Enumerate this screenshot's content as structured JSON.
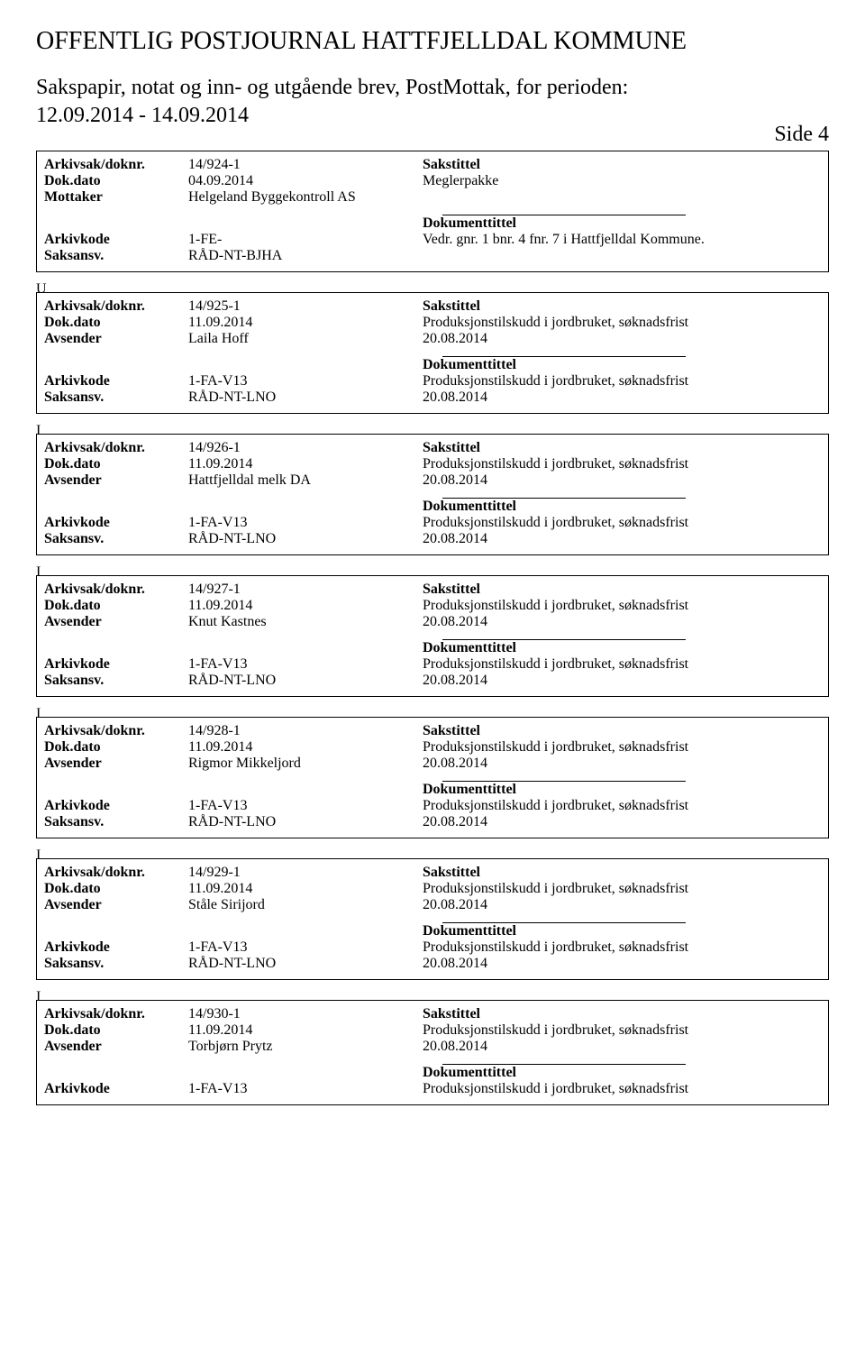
{
  "header": {
    "title": "OFFENTLIG POSTJOURNAL HATTFJELLDAL KOMMUNE",
    "subtitle_line1": "Sakspapir, notat og inn- og utgående brev, PostMottak, for perioden:",
    "subtitle_line2": "12.09.2014 - 14.09.2014",
    "side_label": "Side 4"
  },
  "labels": {
    "arkivsak": "Arkivsak/doknr.",
    "dokdato": "Dok.dato",
    "mottaker": "Mottaker",
    "avsender": "Avsender",
    "arkivkode": "Arkivkode",
    "saksansv": "Saksansv.",
    "sakstittel": "Sakstittel",
    "dokumenttittel": "Dokumenttittel"
  },
  "entries": [
    {
      "id": "14/924-1",
      "date": "04.09.2014",
      "party_label": "Mottaker",
      "party_value": "Helgeland Byggekontroll AS",
      "arkivkode": "1-FE-",
      "saksansv": "RÅD-NT-BJHA",
      "sakstittel": "Meglerpakke",
      "sakstittel2": "",
      "dok1": "Vedr. gnr. 1 bnr. 4 fnr. 7 i Hattfjelldal Kommune.",
      "dok2": "",
      "type_after": "U"
    },
    {
      "id": "14/925-1",
      "date": "11.09.2014",
      "party_label": "Avsender",
      "party_value": "Laila Hoff",
      "arkivkode": "1-FA-V13",
      "saksansv": "RÅD-NT-LNO",
      "sakstittel": "Produksjonstilskudd i jordbruket, søknadsfrist",
      "sakstittel2": "20.08.2014",
      "dok1": "Produksjonstilskudd i jordbruket, søknadsfrist",
      "dok2": "20.08.2014",
      "type_after": "I"
    },
    {
      "id": "14/926-1",
      "date": "11.09.2014",
      "party_label": "Avsender",
      "party_value": "Hattfjelldal melk DA",
      "arkivkode": "1-FA-V13",
      "saksansv": "RÅD-NT-LNO",
      "sakstittel": "Produksjonstilskudd i jordbruket, søknadsfrist",
      "sakstittel2": "20.08.2014",
      "dok1": "Produksjonstilskudd i jordbruket, søknadsfrist",
      "dok2": "20.08.2014",
      "type_after": "I"
    },
    {
      "id": "14/927-1",
      "date": "11.09.2014",
      "party_label": "Avsender",
      "party_value": "Knut Kastnes",
      "arkivkode": "1-FA-V13",
      "saksansv": "RÅD-NT-LNO",
      "sakstittel": "Produksjonstilskudd i jordbruket, søknadsfrist",
      "sakstittel2": "20.08.2014",
      "dok1": "Produksjonstilskudd i jordbruket, søknadsfrist",
      "dok2": "20.08.2014",
      "type_after": "I"
    },
    {
      "id": "14/928-1",
      "date": "11.09.2014",
      "party_label": "Avsender",
      "party_value": "Rigmor Mikkeljord",
      "arkivkode": "1-FA-V13",
      "saksansv": "RÅD-NT-LNO",
      "sakstittel": "Produksjonstilskudd i jordbruket, søknadsfrist",
      "sakstittel2": "20.08.2014",
      "dok1": "Produksjonstilskudd i jordbruket, søknadsfrist",
      "dok2": "20.08.2014",
      "type_after": "I"
    },
    {
      "id": "14/929-1",
      "date": "11.09.2014",
      "party_label": "Avsender",
      "party_value": "Ståle Sirijord",
      "arkivkode": "1-FA-V13",
      "saksansv": "RÅD-NT-LNO",
      "sakstittel": "Produksjonstilskudd i jordbruket, søknadsfrist",
      "sakstittel2": "20.08.2014",
      "dok1": "Produksjonstilskudd i jordbruket, søknadsfrist",
      "dok2": "20.08.2014",
      "type_after": "I"
    },
    {
      "id": "14/930-1",
      "date": "11.09.2014",
      "party_label": "Avsender",
      "party_value": "Torbjørn Prytz",
      "arkivkode": "1-FA-V13",
      "saksansv": "",
      "sakstittel": "Produksjonstilskudd i jordbruket, søknadsfrist",
      "sakstittel2": "20.08.2014",
      "dok1": "Produksjonstilskudd i jordbruket, søknadsfrist",
      "dok2": "",
      "type_after": ""
    }
  ]
}
